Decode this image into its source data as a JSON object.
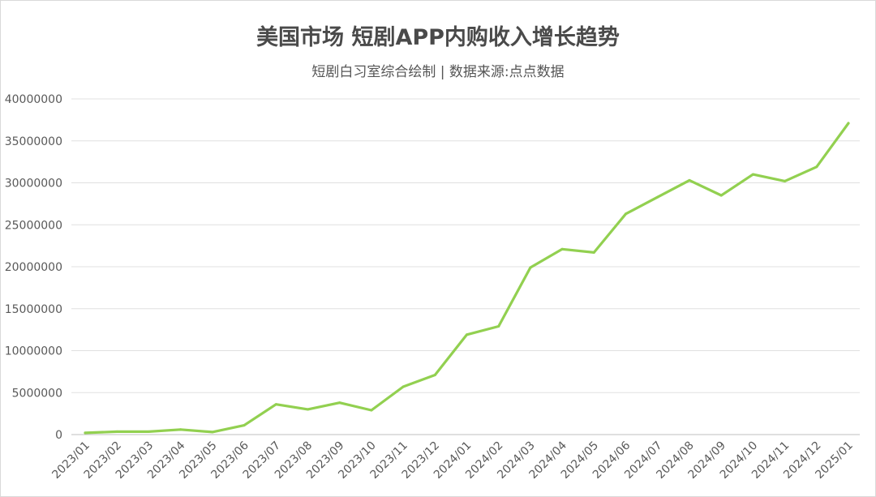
{
  "chart_data": {
    "type": "line",
    "title": "美国市场 短剧APP内购收入增长趋势",
    "subtitle": "短剧白习室综合绘制 | 数据来源:点点数据",
    "xlabel": "",
    "ylabel": "",
    "ylim": [
      0,
      40000000
    ],
    "yticks": [
      0,
      5000000,
      10000000,
      15000000,
      20000000,
      25000000,
      30000000,
      35000000,
      40000000
    ],
    "grid": true,
    "legend": "none",
    "line_color": "#92d050",
    "categories": [
      "2023/01",
      "2023/02",
      "2023/03",
      "2023/04",
      "2023/05",
      "2023/06",
      "2023/07",
      "2023/08",
      "2023/09",
      "2023/10",
      "2023/11",
      "2023/12",
      "2024/01",
      "2024/02",
      "2024/03",
      "2024/04",
      "2024/05",
      "2024/06",
      "2024/07",
      "2024/08",
      "2024/09",
      "2024/10",
      "2024/11",
      "2024/12",
      "2025/01"
    ],
    "series": [
      {
        "values": [
          200000,
          350000,
          350000,
          600000,
          300000,
          1100000,
          3600000,
          3000000,
          3800000,
          2900000,
          5700000,
          7100000,
          11900000,
          12900000,
          19900000,
          22100000,
          21700000,
          26300000,
          28300000,
          30300000,
          28500000,
          31000000,
          30200000,
          31900000,
          37100000
        ]
      }
    ]
  }
}
